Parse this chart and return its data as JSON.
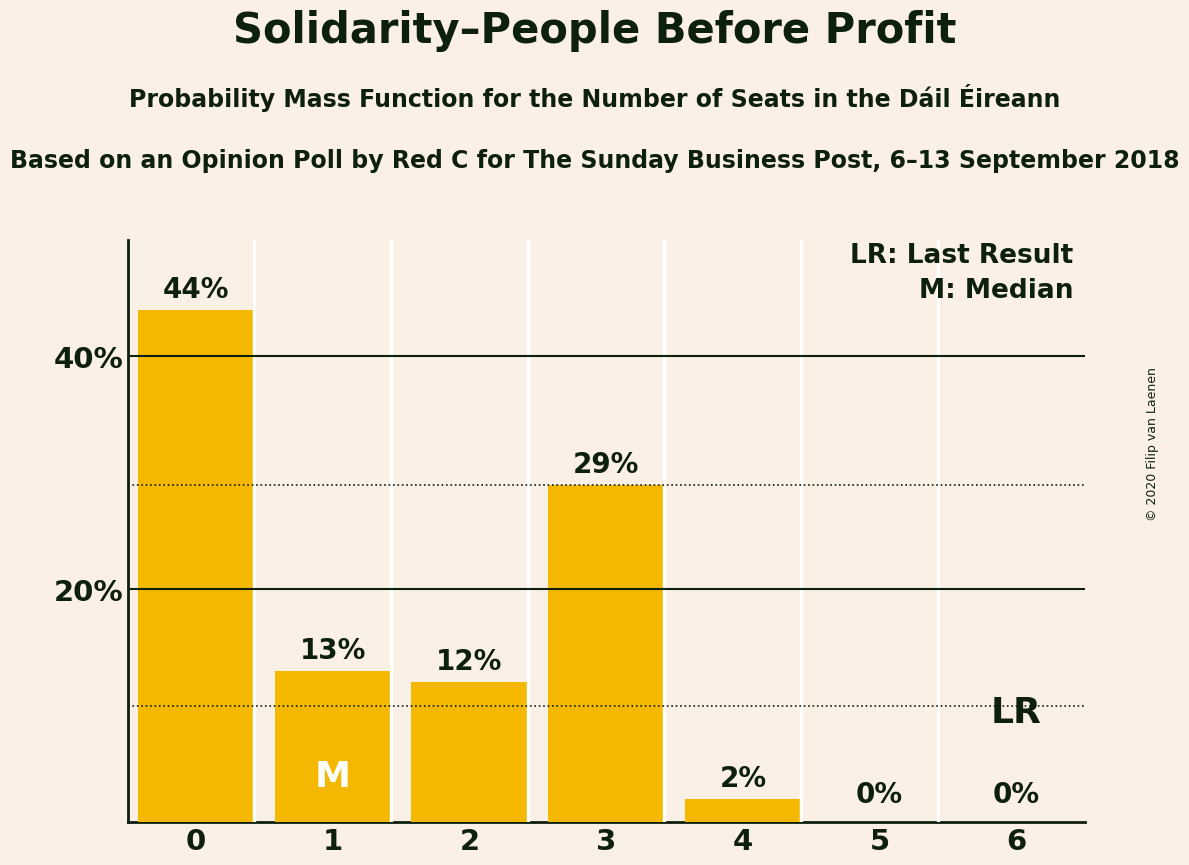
{
  "title": "Solidarity–People Before Profit",
  "subtitle1": "Probability Mass Function for the Number of Seats in the Dáil Éireann",
  "subtitle2": "Based on an Opinion Poll by Red C for The Sunday Business Post, 6–13 September 2018",
  "copyright": "© 2020 Filip van Laenen",
  "categories": [
    0,
    1,
    2,
    3,
    4,
    5,
    6
  ],
  "values": [
    0.44,
    0.13,
    0.12,
    0.29,
    0.02,
    0.0,
    0.0
  ],
  "bar_color": "#F5B800",
  "background_color": "#FAF0E6",
  "text_color": "#0d1f0d",
  "median_bar": 1,
  "lr_bar": 6,
  "dotted_lines": [
    0.29,
    0.1
  ],
  "solid_lines": [
    0.4,
    0.2
  ],
  "yticks": [
    0.2,
    0.4
  ],
  "ytick_labels": [
    "20%",
    "40%"
  ],
  "ylim": [
    0,
    0.5
  ],
  "title_fontsize": 30,
  "subtitle1_fontsize": 17,
  "subtitle2_fontsize": 17,
  "bar_label_fontsize": 20,
  "axis_tick_fontsize": 21,
  "annotation_fontsize": 19,
  "median_label_fontsize": 26,
  "lr_label_fontsize": 26,
  "copyright_fontsize": 9
}
